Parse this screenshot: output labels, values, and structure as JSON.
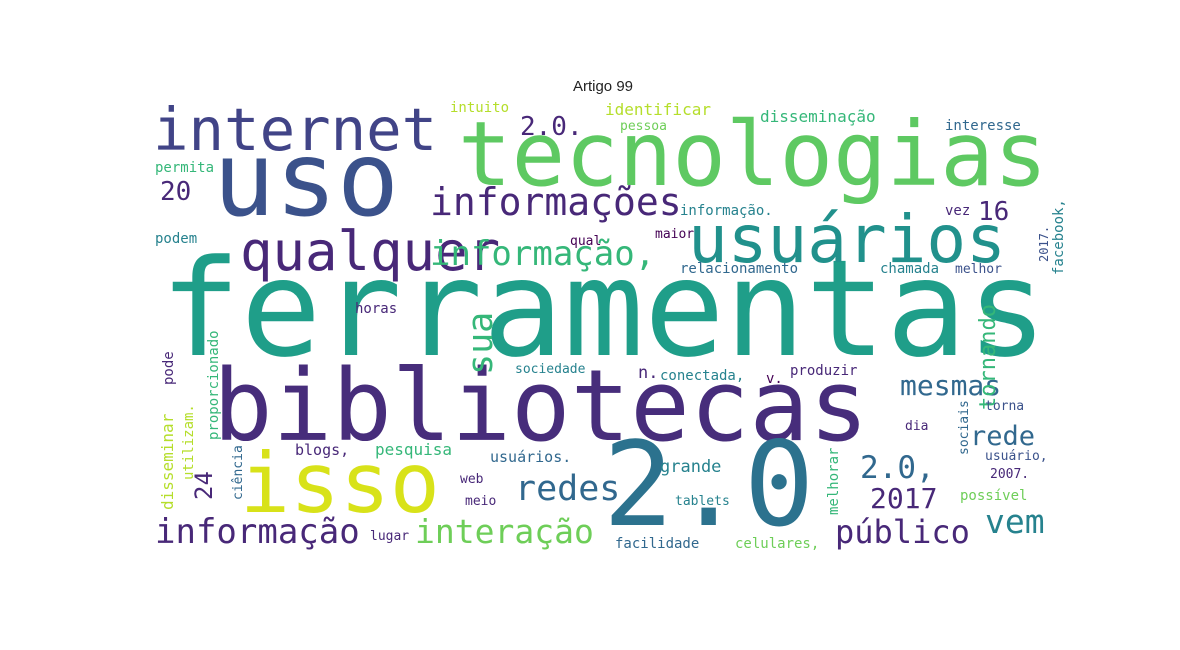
{
  "chart_data": {
    "type": "wordcloud",
    "title": "Artigo 99",
    "words": [
      {
        "text": "ferramentas",
        "color": "#1f9e89"
      },
      {
        "text": "bibliotecas",
        "color": "#472d7b"
      },
      {
        "text": "tecnologias",
        "color": "#5ec962"
      },
      {
        "text": "uso",
        "color": "#3b528b"
      },
      {
        "text": "internet",
        "color": "#414487"
      },
      {
        "text": "usuários",
        "color": "#21918c"
      },
      {
        "text": "qualquer",
        "color": "#482878"
      },
      {
        "text": "isso",
        "color": "#d8e219"
      },
      {
        "text": "2.0",
        "color": "#2c728e"
      },
      {
        "text": "informações",
        "color": "#482878"
      },
      {
        "text": "informação,",
        "color": "#35b779"
      },
      {
        "text": "mesmas",
        "color": "#31688e"
      },
      {
        "text": "rede",
        "color": "#31688e"
      },
      {
        "text": "redes",
        "color": "#31688e"
      },
      {
        "text": "2.0,",
        "color": "#31688e"
      },
      {
        "text": "2017",
        "color": "#482878"
      },
      {
        "text": "vem",
        "color": "#26828e"
      },
      {
        "text": "público",
        "color": "#482878"
      },
      {
        "text": "interação",
        "color": "#6ece58"
      },
      {
        "text": "informação",
        "color": "#482878"
      },
      {
        "text": "sua",
        "color": "#35b779"
      },
      {
        "text": "tornando",
        "color": "#35b779"
      },
      {
        "text": "2.0.",
        "color": "#482878"
      },
      {
        "text": "20",
        "color": "#482878"
      },
      {
        "text": "16",
        "color": "#482878"
      },
      {
        "text": "24",
        "color": "#482878"
      },
      {
        "text": "disseminação",
        "color": "#35b779"
      },
      {
        "text": "identificar",
        "color": "#b5de2b"
      },
      {
        "text": "intuito",
        "color": "#b5de2b"
      },
      {
        "text": "pessoa",
        "color": "#6ece58"
      },
      {
        "text": "interesse",
        "color": "#31688e"
      },
      {
        "text": "permita",
        "color": "#35b779"
      },
      {
        "text": "podem",
        "color": "#26828e"
      },
      {
        "text": "informação.",
        "color": "#26828e"
      },
      {
        "text": "vez",
        "color": "#482878"
      },
      {
        "text": "2017.",
        "color": "#3b528b"
      },
      {
        "text": "facebook,",
        "color": "#26828e"
      },
      {
        "text": "maior",
        "color": "#440154"
      },
      {
        "text": "qual",
        "color": "#440154"
      },
      {
        "text": "relacionamento",
        "color": "#31688e"
      },
      {
        "text": "chamada",
        "color": "#26828e"
      },
      {
        "text": "melhor",
        "color": "#3b528b"
      },
      {
        "text": "horas",
        "color": "#482878"
      },
      {
        "text": "pode",
        "color": "#482878"
      },
      {
        "text": "proporcionado",
        "color": "#35b779"
      },
      {
        "text": "disseminar",
        "color": "#b5de2b"
      },
      {
        "text": "utilizam.",
        "color": "#b5de2b"
      },
      {
        "text": "ciência",
        "color": "#31688e"
      },
      {
        "text": "blogs,",
        "color": "#482878"
      },
      {
        "text": "pesquisa",
        "color": "#35b779"
      },
      {
        "text": "usuários.",
        "color": "#31688e"
      },
      {
        "text": "web",
        "color": "#482878"
      },
      {
        "text": "meio",
        "color": "#482878"
      },
      {
        "text": "lugar",
        "color": "#482878"
      },
      {
        "text": "sociedade",
        "color": "#26828e"
      },
      {
        "text": "n.",
        "color": "#482878"
      },
      {
        "text": "conectada,",
        "color": "#26828e"
      },
      {
        "text": "v.",
        "color": "#440154"
      },
      {
        "text": "produzir",
        "color": "#482878"
      },
      {
        "text": "grande",
        "color": "#26828e"
      },
      {
        "text": "tablets",
        "color": "#26828e"
      },
      {
        "text": "facilidade",
        "color": "#31688e"
      },
      {
        "text": "celulares,",
        "color": "#6ece58"
      },
      {
        "text": "melhorar",
        "color": "#35b779"
      },
      {
        "text": "sociais",
        "color": "#31688e"
      },
      {
        "text": "dia",
        "color": "#482878"
      },
      {
        "text": "torna",
        "color": "#3b528b"
      },
      {
        "text": "usuário,",
        "color": "#3b528b"
      },
      {
        "text": "2007.",
        "color": "#482878"
      },
      {
        "text": "possível",
        "color": "#6ece58"
      }
    ]
  }
}
